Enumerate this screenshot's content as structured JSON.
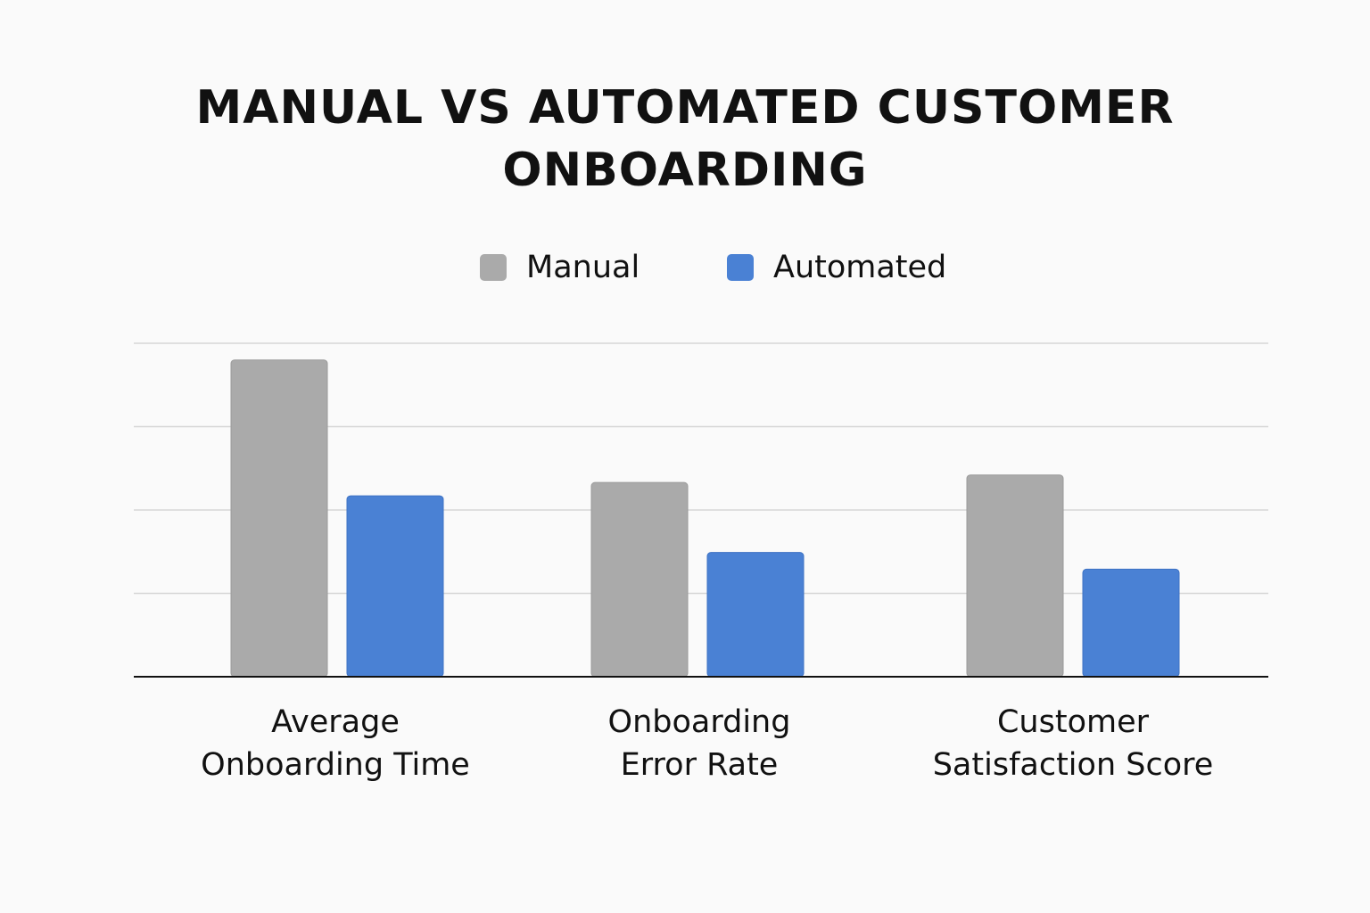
{
  "chart_data": {
    "type": "bar",
    "title_lines": [
      "MANUAL VS AUTOMATED CUSTOMER",
      "ONBOARDING"
    ],
    "categories": [
      [
        "Average",
        "Onboarding Time"
      ],
      [
        "Onboarding",
        "Error Rate"
      ],
      [
        "Customer",
        "Satisfaction Score"
      ]
    ],
    "series": [
      {
        "name": "Manual",
        "color": "#aaaaaa",
        "values": [
          3.8,
          2.33,
          2.42
        ]
      },
      {
        "name": "Automated",
        "color": "#4a81d4",
        "values": [
          2.17,
          1.49,
          1.29
        ]
      }
    ],
    "xlabel": "",
    "ylabel": "",
    "ylim": [
      0,
      4
    ],
    "grid": true,
    "legend_position": "top-center",
    "axis_color": "#111111",
    "grid_color": "#d6d6d6"
  }
}
